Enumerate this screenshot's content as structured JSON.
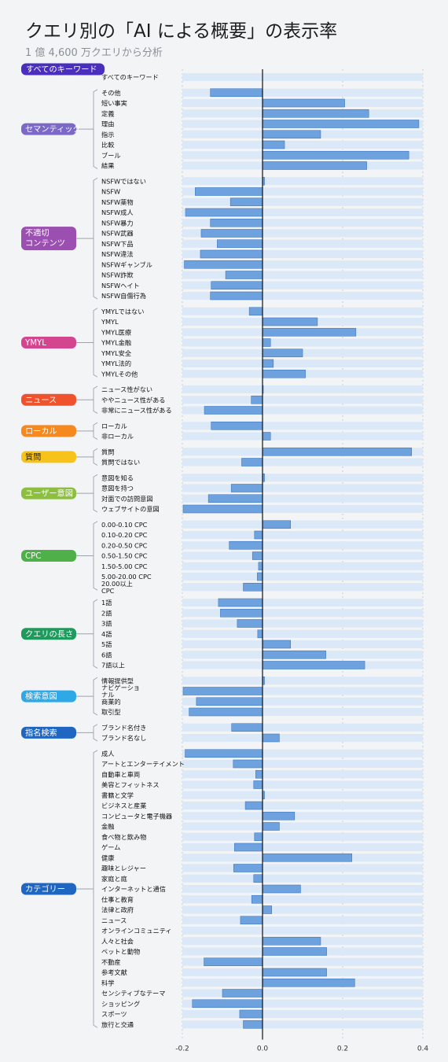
{
  "title": "クエリ別の「AI による概要」の表示率",
  "subtitle": "1 億 4,600 万クエリから分析",
  "chart_data": {
    "type": "bar",
    "orientation": "horizontal",
    "xlim": [
      -0.2,
      0.4
    ],
    "xticks": [
      -0.2,
      0.0,
      0.2,
      0.4
    ],
    "xtick_labels": [
      "-0.2",
      "0.0",
      "0.2",
      "0.4"
    ],
    "grid": "vertical dashed",
    "bar_color": "#6ea2df",
    "band_color": "#dbe8f8",
    "groups": [
      {
        "name": "すべてのキーワード",
        "color": "#4a2fbd",
        "items": [
          {
            "label": "すべてのキーワード",
            "value": 0.0
          }
        ]
      },
      {
        "name": "セマンティック",
        "color": "#7b68c9",
        "items": [
          {
            "label": "その他",
            "value": -0.13
          },
          {
            "label": "短い事実",
            "value": 0.205
          },
          {
            "label": "定義",
            "value": 0.265
          },
          {
            "label": "理由",
            "value": 0.39
          },
          {
            "label": "指示",
            "value": 0.145
          },
          {
            "label": "比較",
            "value": 0.055
          },
          {
            "label": "ブール",
            "value": 0.365
          },
          {
            "label": "結果",
            "value": 0.26
          }
        ]
      },
      {
        "name": "不適切\nコンテンツ",
        "color": "#9b4fb0",
        "items": [
          {
            "label": "NSFWではない",
            "value": 0.005
          },
          {
            "label": "NSFW",
            "value": -0.168
          },
          {
            "label": "NSFW薬物",
            "value": -0.08
          },
          {
            "label": "NSFW成人",
            "value": -0.192
          },
          {
            "label": "NSFW暴力",
            "value": -0.13
          },
          {
            "label": "NSFW武器",
            "value": -0.153
          },
          {
            "label": "NSFW下品",
            "value": -0.113
          },
          {
            "label": "NSFW違法",
            "value": -0.155
          },
          {
            "label": "NSFWギャンブル",
            "value": -0.195
          },
          {
            "label": "NSFW詐欺",
            "value": -0.092
          },
          {
            "label": "NSFWヘイト",
            "value": -0.128
          },
          {
            "label": "NSFW自傷行為",
            "value": -0.13
          }
        ]
      },
      {
        "name": "YMYL",
        "color": "#d4458f",
        "items": [
          {
            "label": "YMYLではない",
            "value": -0.033
          },
          {
            "label": "YMYL",
            "value": 0.137
          },
          {
            "label": "YMYL医療",
            "value": 0.233
          },
          {
            "label": "YMYL金融",
            "value": 0.02
          },
          {
            "label": "YMYL安全",
            "value": 0.1
          },
          {
            "label": "YMYL法的",
            "value": 0.027
          },
          {
            "label": "YMYLその他",
            "value": 0.107
          }
        ]
      },
      {
        "name": "ニュース",
        "color": "#f0522d",
        "items": [
          {
            "label": "ニュース性がない",
            "value": 0.002
          },
          {
            "label": "ややニュース性がある",
            "value": -0.028
          },
          {
            "label": "非常にニュース性がある",
            "value": -0.145
          }
        ]
      },
      {
        "name": "ローカル",
        "color": "#f5891f",
        "items": [
          {
            "label": "ローカル",
            "value": -0.128
          },
          {
            "label": "非ローカル",
            "value": 0.02
          }
        ]
      },
      {
        "name": "質問",
        "color": "#f7c31a",
        "text_color": "#1d1d1f",
        "items": [
          {
            "label": "質問",
            "value": 0.372
          },
          {
            "label": "質問ではない",
            "value": -0.052
          }
        ]
      },
      {
        "name": "ユーザー意図",
        "color": "#8cbf3f",
        "items": [
          {
            "label": "意図を知る",
            "value": 0.005
          },
          {
            "label": "意図を持つ",
            "value": -0.078
          },
          {
            "label": "対面での訪問意図",
            "value": -0.135
          },
          {
            "label": "ウェブサイトの意図",
            "value": -0.198
          }
        ]
      },
      {
        "name": "CPC",
        "color": "#4fb04a",
        "items": [
          {
            "label": "0.00-0.10 CPC",
            "value": 0.07
          },
          {
            "label": "0.10-0.20 CPC",
            "value": -0.02
          },
          {
            "label": "0.20-0.50 CPC",
            "value": -0.083
          },
          {
            "label": "0.50-1.50 CPC",
            "value": -0.025
          },
          {
            "label": "1.50-5.00 CPC",
            "value": -0.01
          },
          {
            "label": "5.00-20.00 CPC",
            "value": -0.013
          },
          {
            "label": "20.00以上\nCPC",
            "value": -0.048
          }
        ]
      },
      {
        "name": "クエリの長さ",
        "color": "#1f9a5c",
        "items": [
          {
            "label": "1語",
            "value": -0.11
          },
          {
            "label": "2語",
            "value": -0.105
          },
          {
            "label": "3語",
            "value": -0.063
          },
          {
            "label": "4語",
            "value": -0.012
          },
          {
            "label": "5語",
            "value": 0.07
          },
          {
            "label": "6語",
            "value": 0.158
          },
          {
            "label": "7語以上",
            "value": 0.255
          }
        ]
      },
      {
        "name": "検索意図",
        "color": "#2fa8e6",
        "items": [
          {
            "label": "情報提供型",
            "value": 0.005
          },
          {
            "label": "ナビゲーショ\nナル",
            "value": -0.198
          },
          {
            "label": "商業的",
            "value": -0.165
          },
          {
            "label": "取引型",
            "value": -0.183
          }
        ]
      },
      {
        "name": "指名検索",
        "color": "#1f66c2",
        "items": [
          {
            "label": "ブランド名付き",
            "value": -0.077
          },
          {
            "label": "ブランド名なし",
            "value": 0.042
          }
        ]
      },
      {
        "name": "カテゴリー",
        "color": "#1f66c2",
        "items": [
          {
            "label": "成人",
            "value": -0.193
          },
          {
            "label": "アートとエンターテイメント",
            "value": -0.073
          },
          {
            "label": "自動車と車両",
            "value": -0.017
          },
          {
            "label": "美容とフィットネス",
            "value": -0.022
          },
          {
            "label": "書籍と文学",
            "value": 0.005
          },
          {
            "label": "ビジネスと産業",
            "value": -0.043
          },
          {
            "label": "コンピュータと電子機器",
            "value": 0.08
          },
          {
            "label": "金融",
            "value": 0.042
          },
          {
            "label": "食べ物と飲み物",
            "value": -0.02
          },
          {
            "label": "ゲーム",
            "value": -0.07
          },
          {
            "label": "健康",
            "value": 0.223
          },
          {
            "label": "趣味とレジャー",
            "value": -0.072
          },
          {
            "label": "家庭と庭",
            "value": -0.022
          },
          {
            "label": "インターネットと通信",
            "value": 0.095
          },
          {
            "label": "仕事と教育",
            "value": -0.027
          },
          {
            "label": "法律と政府",
            "value": 0.023
          },
          {
            "label": "ニュース",
            "value": -0.055
          },
          {
            "label": "オンラインコミュニティ",
            "value": 0.0
          },
          {
            "label": "人々と社会",
            "value": 0.145
          },
          {
            "label": "ペットと動物",
            "value": 0.16
          },
          {
            "label": "不動産",
            "value": -0.146
          },
          {
            "label": "参考文献",
            "value": 0.16
          },
          {
            "label": "科学",
            "value": 0.23
          },
          {
            "label": "センシティブなテーマ",
            "value": -0.1
          },
          {
            "label": "ショッピング",
            "value": -0.175
          },
          {
            "label": "スポーツ",
            "value": -0.057
          },
          {
            "label": "旅行と交通",
            "value": -0.048
          }
        ]
      }
    ]
  }
}
